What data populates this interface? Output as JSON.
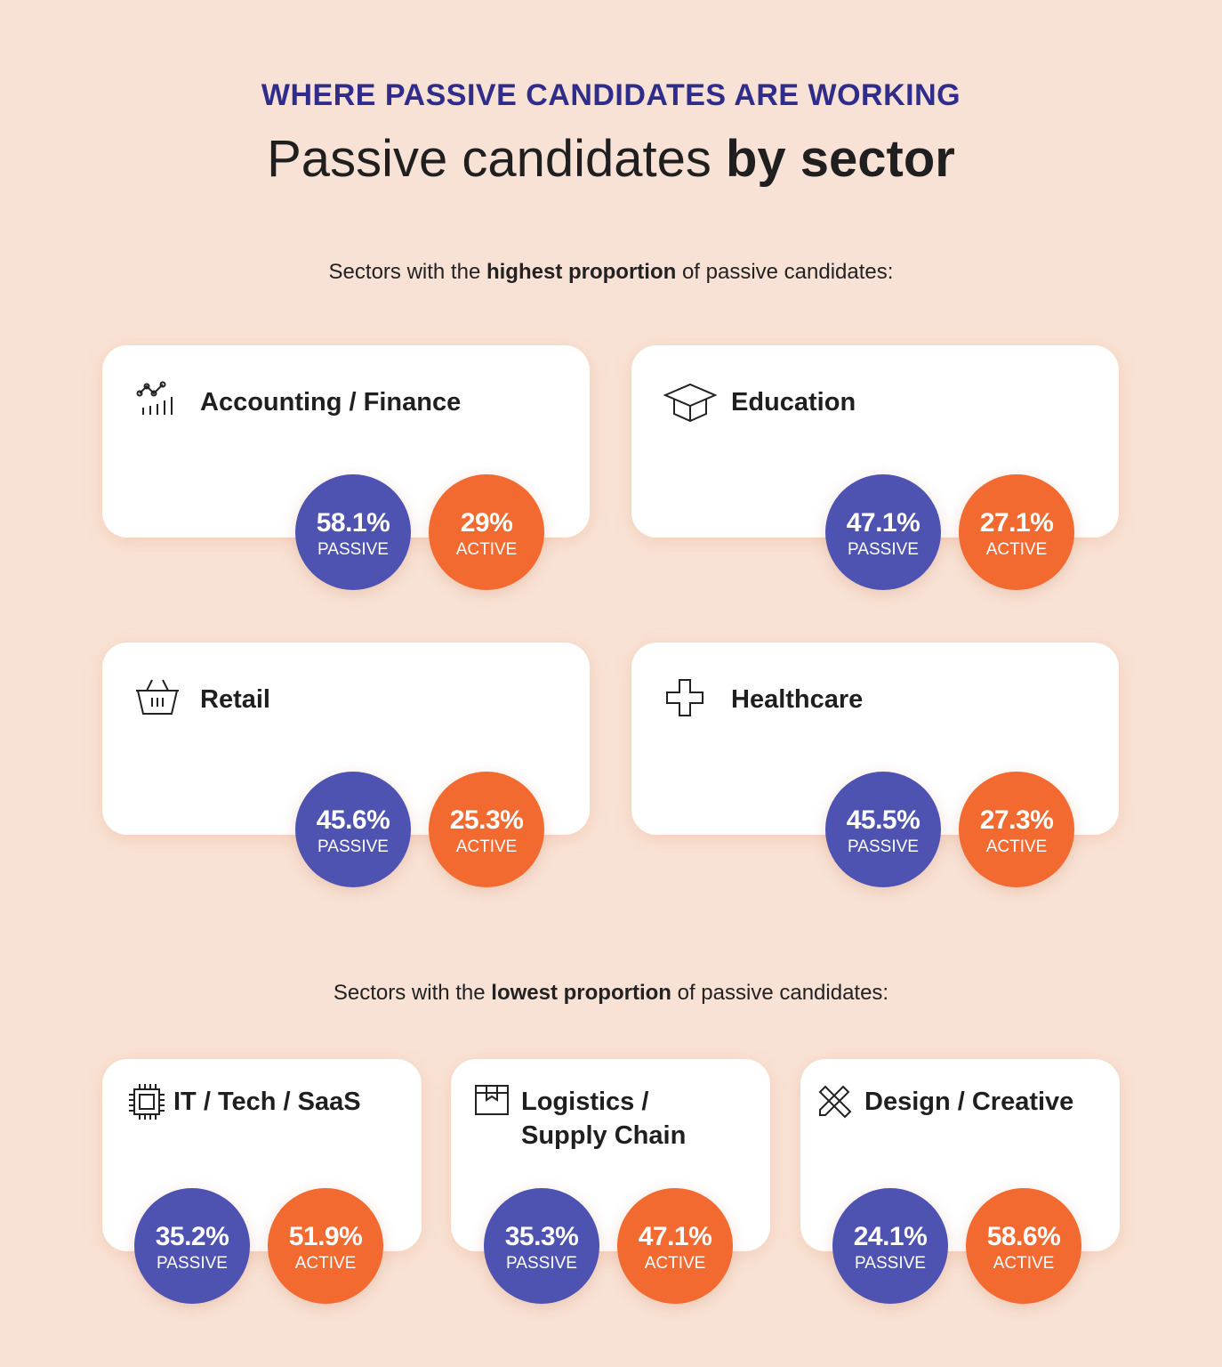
{
  "header": {
    "kicker": "WHERE PASSIVE CANDIDATES ARE WORKING",
    "title_regular": "Passive candidates ",
    "title_bold": "by sector"
  },
  "highest": {
    "pre": "Sectors with the ",
    "bold": "highest proportion",
    "post": " of passive candidates:"
  },
  "lowest": {
    "pre": "Sectors with the ",
    "bold": "lowest proportion",
    "post": " of passive candidates:"
  },
  "labels": {
    "passive": "PASSIVE",
    "active": "ACTIVE"
  },
  "colors": {
    "background": "#f8e2d5",
    "kicker": "#2f2c8c",
    "passive": "#4e52b0",
    "active": "#f26a30"
  },
  "sectors": [
    {
      "name": "Accounting / Finance",
      "icon": "chart-icon",
      "passive": "58.1%",
      "active": "29%"
    },
    {
      "name": "Education",
      "icon": "graduation-cap-icon",
      "passive": "47.1%",
      "active": "27.1%"
    },
    {
      "name": "Retail",
      "icon": "basket-icon",
      "passive": "45.6%",
      "active": "25.3%"
    },
    {
      "name": "Healthcare",
      "icon": "medical-cross-icon",
      "passive": "45.5%",
      "active": "27.3%"
    },
    {
      "name": "IT / Tech / SaaS",
      "icon": "chip-icon",
      "passive": "35.2%",
      "active": "51.9%"
    },
    {
      "name": "Logistics / Supply Chain",
      "name_line1": "Logistics /",
      "name_line2": "Supply Chain",
      "icon": "box-icon",
      "passive": "35.3%",
      "active": "47.1%"
    },
    {
      "name": "Design / Creative",
      "icon": "pencil-ruler-icon",
      "passive": "24.1%",
      "active": "58.6%"
    }
  ]
}
